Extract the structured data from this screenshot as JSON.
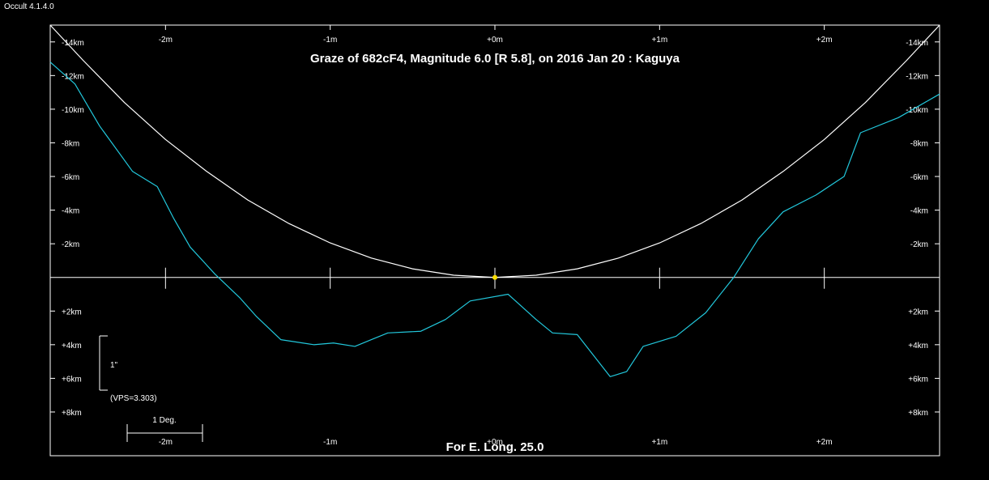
{
  "app": {
    "title": "Occult 4.1.4.0"
  },
  "chart_data": {
    "type": "line",
    "title": "Graze of  682cF4,  Magnitude 6.0 [R 5.8],  on 2016 Jan 20  :  Kaguya",
    "footer": "For E. Long. 25.0",
    "x_axis": {
      "unit": "minutes",
      "range": [
        -2.7,
        2.7
      ],
      "ticks": [
        -2,
        -1,
        0,
        1,
        2
      ],
      "tick_labels": [
        "-2m",
        "-1m",
        "+0m",
        "+1m",
        "+2m"
      ]
    },
    "y_axis": {
      "unit": "km",
      "range": [
        -15,
        10.6
      ],
      "ticks": [
        -14,
        -12,
        -10,
        -8,
        -6,
        -4,
        -2,
        2,
        4,
        6,
        8
      ],
      "tick_labels": [
        "-14km",
        "-12km",
        "-10km",
        "-8km",
        "-6km",
        "-4km",
        "-2km",
        "+2km",
        "+4km",
        "+6km",
        "+8km"
      ]
    },
    "central_point": {
      "x": 0,
      "y": 0,
      "color": "#ffe000"
    },
    "series": [
      {
        "color": "#ffffff",
        "kind": "limb-arc",
        "x": [
          -2.7,
          -2.5,
          -2.25,
          -2.0,
          -1.75,
          -1.5,
          -1.25,
          -1.0,
          -0.75,
          -0.5,
          -0.25,
          0,
          0.25,
          0.5,
          0.75,
          1.0,
          1.25,
          1.5,
          1.75,
          2.0,
          2.25,
          2.5,
          2.7
        ],
        "y": [
          -15.0,
          -12.9,
          -10.4,
          -8.2,
          -6.3,
          -4.6,
          -3.2,
          -2.05,
          -1.15,
          -0.51,
          -0.13,
          0,
          -0.13,
          -0.51,
          -1.15,
          -2.05,
          -3.2,
          -4.6,
          -6.3,
          -8.2,
          -10.4,
          -12.9,
          -15.0
        ]
      },
      {
        "color": "#22c8dc",
        "kind": "lunar-profile",
        "x": [
          -2.7,
          -2.55,
          -2.4,
          -2.2,
          -2.05,
          -1.95,
          -1.85,
          -1.7,
          -1.55,
          -1.45,
          -1.3,
          -1.1,
          -0.98,
          -0.85,
          -0.75,
          -0.65,
          -0.45,
          -0.3,
          -0.15,
          0.08,
          0.25,
          0.35,
          0.5,
          0.7,
          0.8,
          0.9,
          1.1,
          1.28,
          1.45,
          1.6,
          1.75,
          1.95,
          2.12,
          2.22,
          2.45,
          2.7
        ],
        "y": [
          -12.8,
          -11.5,
          -9.0,
          -6.3,
          -5.4,
          -3.5,
          -1.8,
          -0.2,
          1.2,
          2.3,
          3.7,
          4.0,
          3.9,
          4.1,
          3.7,
          3.3,
          3.2,
          2.5,
          1.4,
          1.0,
          2.5,
          3.3,
          3.4,
          5.9,
          5.6,
          4.1,
          3.5,
          2.1,
          0.0,
          -2.3,
          -3.9,
          -4.9,
          -6.0,
          -8.6,
          -9.5,
          -10.9
        ]
      }
    ],
    "scale_bar": {
      "label": "1\"",
      "vps_label": "(VPS=3.303)"
    },
    "deg_bar": {
      "label": "1 Deg."
    }
  }
}
